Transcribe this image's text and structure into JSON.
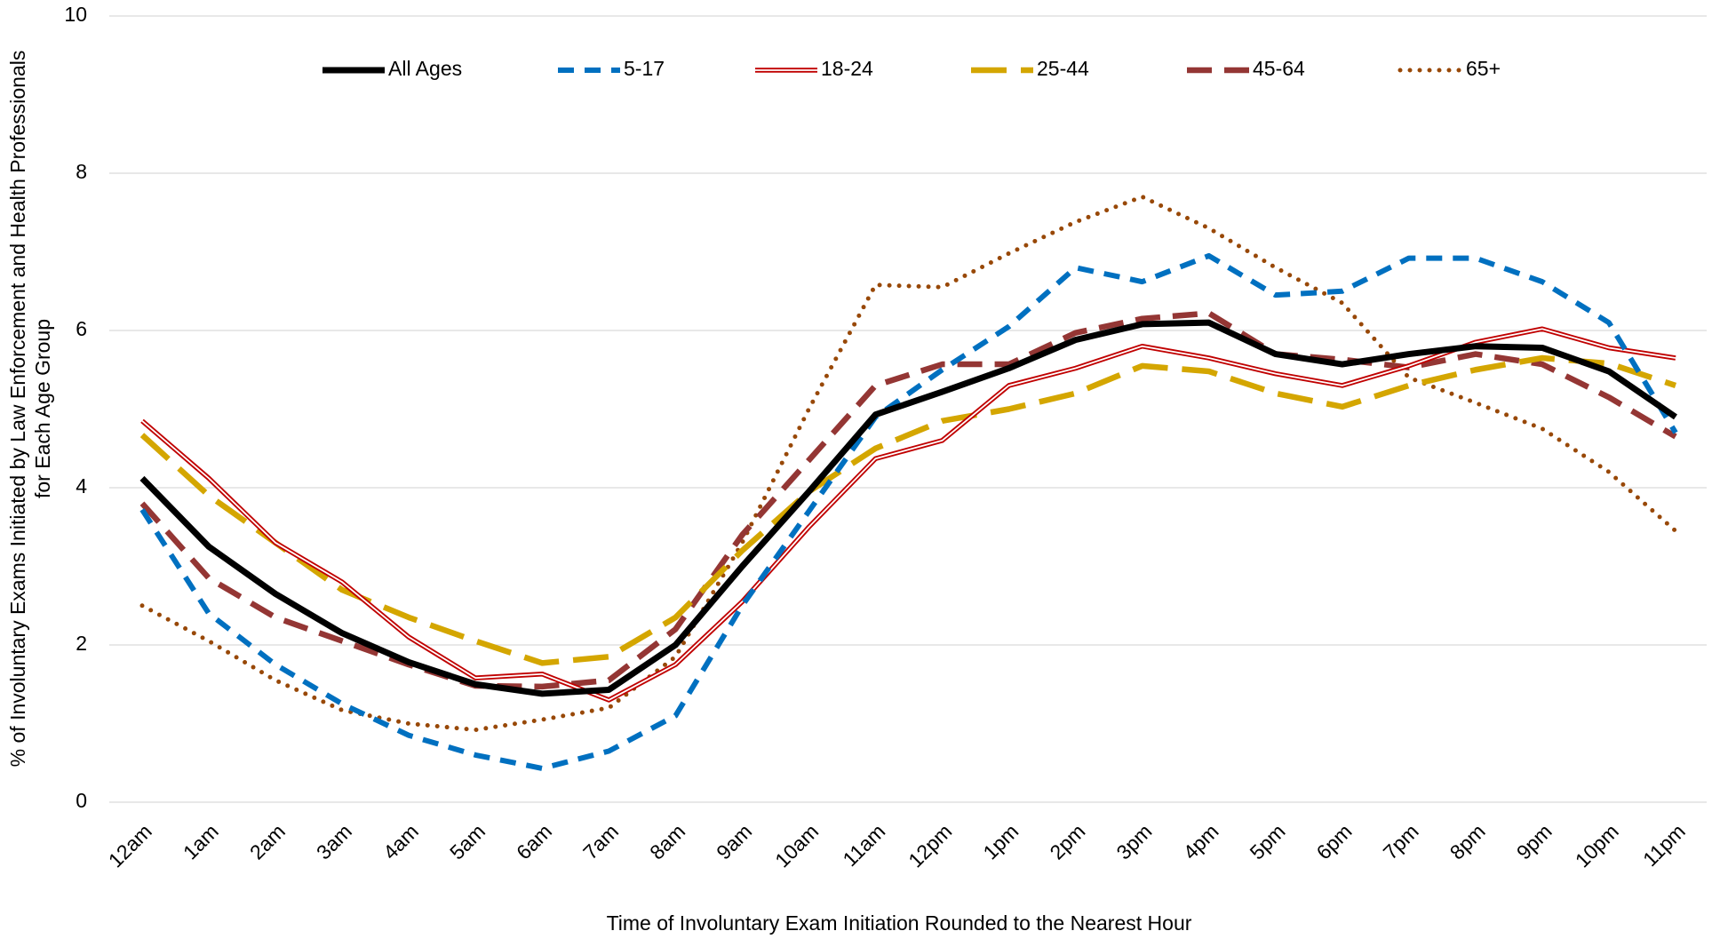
{
  "chart_data": {
    "type": "line",
    "xlabel": "Time of Involuntary Exam Initiation Rounded to the Nearest Hour",
    "ylabel": [
      "% of Involuntary Exams Initiated by Law Enforcement and Health Professionals",
      "for Each Age Group"
    ],
    "categories": [
      "12am",
      "1am",
      "2am",
      "3am",
      "4am",
      "5am",
      "6am",
      "7am",
      "8am",
      "9am",
      "10am",
      "11am",
      "12pm",
      "1pm",
      "2pm",
      "3pm",
      "4pm",
      "5pm",
      "6pm",
      "7pm",
      "8pm",
      "9pm",
      "10pm",
      "11pm"
    ],
    "ylim": [
      0,
      10
    ],
    "yticks": [
      0,
      2,
      4,
      6,
      8,
      10
    ],
    "grid": true,
    "legend": "top",
    "series": [
      {
        "name": "All Ages",
        "color": "#000000",
        "dash": "solid",
        "values": [
          4.12,
          3.25,
          2.65,
          2.15,
          1.78,
          1.5,
          1.38,
          1.43,
          2.0,
          3.0,
          3.95,
          4.93,
          5.22,
          5.52,
          5.88,
          6.08,
          6.1,
          5.7,
          5.57,
          5.7,
          5.8,
          5.78,
          5.48,
          4.9
        ]
      },
      {
        "name": "5-17",
        "color": "#0070c0",
        "dash": "dashed",
        "values": [
          3.72,
          2.4,
          1.75,
          1.25,
          0.85,
          0.6,
          0.43,
          0.65,
          1.1,
          2.5,
          3.7,
          4.9,
          5.5,
          6.05,
          6.8,
          6.62,
          6.95,
          6.45,
          6.5,
          6.92,
          6.92,
          6.62,
          6.1,
          4.7
        ]
      },
      {
        "name": "18-24",
        "color": "#c00000",
        "dash": "double",
        "values": [
          4.85,
          4.12,
          3.3,
          2.8,
          2.1,
          1.58,
          1.63,
          1.3,
          1.75,
          2.55,
          3.5,
          4.37,
          4.6,
          5.3,
          5.52,
          5.8,
          5.65,
          5.45,
          5.3,
          5.55,
          5.85,
          6.02,
          5.78,
          5.65
        ]
      },
      {
        "name": "25-44",
        "color": "#d4a600",
        "dash": "long-dash",
        "values": [
          4.67,
          3.9,
          3.3,
          2.7,
          2.35,
          2.05,
          1.77,
          1.85,
          2.35,
          3.2,
          3.95,
          4.5,
          4.85,
          5.0,
          5.2,
          5.55,
          5.48,
          5.2,
          5.03,
          5.3,
          5.5,
          5.65,
          5.58,
          5.3
        ]
      },
      {
        "name": "45-64",
        "color": "#943634",
        "dash": "medium-dash",
        "values": [
          3.8,
          2.85,
          2.35,
          2.05,
          1.75,
          1.48,
          1.47,
          1.55,
          2.2,
          3.4,
          4.35,
          5.3,
          5.57,
          5.57,
          5.97,
          6.15,
          6.22,
          5.7,
          5.63,
          5.53,
          5.7,
          5.57,
          5.15,
          4.65
        ]
      },
      {
        "name": "65+",
        "color": "#984807",
        "dash": "dotted",
        "values": [
          2.5,
          2.05,
          1.55,
          1.17,
          1.0,
          0.92,
          1.05,
          1.2,
          1.85,
          3.3,
          5.0,
          6.58,
          6.55,
          6.98,
          7.38,
          7.7,
          7.3,
          6.8,
          6.35,
          5.4,
          5.08,
          4.75,
          4.2,
          3.45
        ]
      }
    ]
  }
}
